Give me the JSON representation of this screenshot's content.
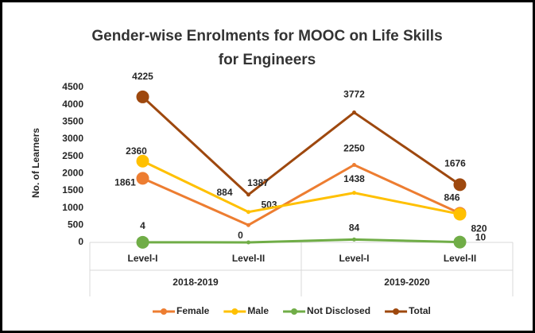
{
  "chart_data": {
    "type": "line",
    "title": [
      "Gender-wise Enrolments for MOOC on Life Skills",
      "for Engineers"
    ],
    "y_label": "No. of Learners",
    "categories": [
      "Level-I",
      "Level-II",
      "Level-I",
      "Level-II"
    ],
    "groups": [
      {
        "label": "2018-2019",
        "span": 2
      },
      {
        "label": "2019-2020",
        "span": 2
      }
    ],
    "series": [
      {
        "name": "Female",
        "color": "#ed7d31",
        "values": [
          1861,
          503,
          2250,
          846
        ]
      },
      {
        "name": "Male",
        "color": "#ffc000",
        "values": [
          2360,
          884,
          1438,
          820
        ]
      },
      {
        "name": "Not Disclosed",
        "color": "#70ad47",
        "values": [
          4,
          0,
          84,
          10
        ]
      },
      {
        "name": "Total",
        "color": "#9e480e",
        "values": [
          4225,
          1387,
          3772,
          1676
        ]
      }
    ],
    "ylim": [
      0,
      4500
    ],
    "yticks": [
      0,
      500,
      1000,
      1500,
      2000,
      2500,
      3000,
      3500,
      4000,
      4500
    ],
    "grid": false,
    "legend": "bottom"
  }
}
